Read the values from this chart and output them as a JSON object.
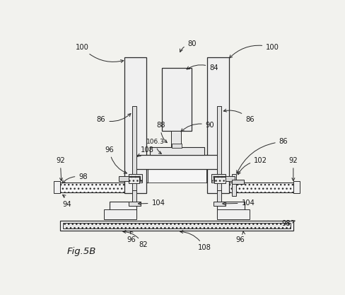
{
  "bg_color": "#f2f2ee",
  "lc": "#2a2a2a",
  "fc_light": "#f0f0f0",
  "fc_med": "#dcdcdc",
  "fc_dark": "#c8c8c8",
  "fc_hatch": "#e8e8e8"
}
